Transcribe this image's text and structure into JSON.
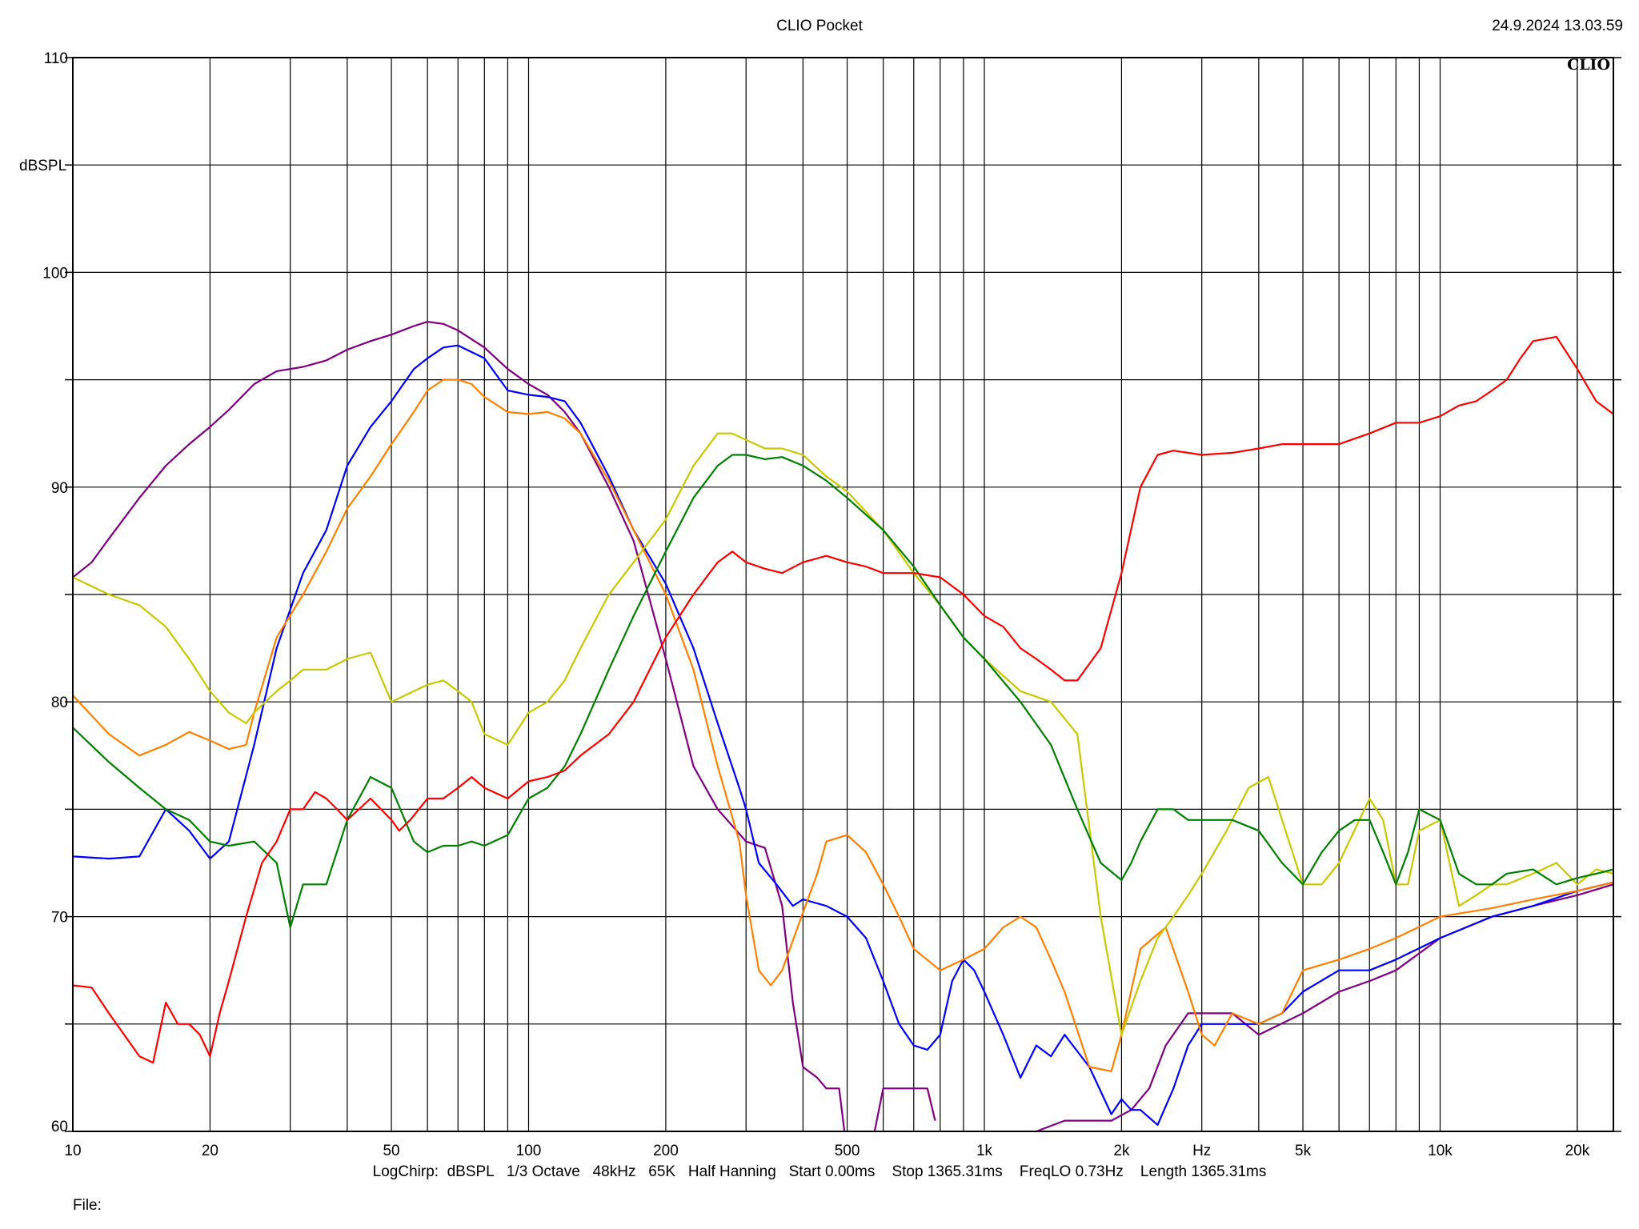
{
  "header": {
    "title": "CLIO Pocket",
    "timestamp": "24.9.2024 13.03.59"
  },
  "chart_data": {
    "type": "line",
    "title": "CLIO Pocket",
    "xlabel": "Hz",
    "ylabel": "dBSPL",
    "xscale": "log",
    "xlim": [
      10,
      24000
    ],
    "ylim": [
      60,
      110
    ],
    "grid": true,
    "yticks": [
      60,
      70,
      80,
      90,
      100,
      110
    ],
    "ytick_labels": [
      "60",
      "70",
      "80",
      "90",
      "100",
      "110"
    ],
    "xticks": [
      10,
      20,
      50,
      100,
      200,
      500,
      1000,
      2000,
      5000,
      10000,
      20000
    ],
    "xtick_labels": [
      "10",
      "20",
      "50",
      "100",
      "200",
      "500",
      "1k",
      "2k",
      "5k",
      "10k",
      "20k"
    ],
    "watermark": "CLIO",
    "series": [
      {
        "color": "#800080",
        "x": [
          10,
          11,
          12,
          14,
          16,
          18,
          20,
          22,
          25,
          28,
          32,
          36,
          40,
          45,
          50,
          56,
          60,
          65,
          70,
          80,
          90,
          100,
          110,
          120,
          130,
          150,
          170,
          200,
          230,
          260,
          300,
          330,
          360,
          380,
          400,
          430,
          450,
          480,
          500,
          550,
          600,
          650,
          700,
          750,
          780
        ],
        "y": [
          85.8,
          86.5,
          87.6,
          89.5,
          91,
          92,
          92.8,
          93.6,
          94.8,
          95.4,
          95.6,
          95.9,
          96.4,
          96.8,
          97.1,
          97.5,
          97.7,
          97.6,
          97.3,
          96.5,
          95.5,
          94.8,
          94.3,
          93.5,
          92.5,
          90,
          87.5,
          82,
          77,
          75,
          73.5,
          73.2,
          70.5,
          66,
          63,
          62.5,
          62,
          62,
          59,
          58,
          62,
          62,
          62,
          62,
          60.5
        ]
      },
      {
        "color": "#800080",
        "x": [
          1300,
          1500,
          1700,
          1900,
          2100,
          2300,
          2500,
          2800,
          3200,
          3500,
          4000,
          5000,
          6000,
          7000,
          8000,
          10000,
          13000,
          16000,
          20000,
          24000
        ],
        "y": [
          60,
          60.5,
          60.5,
          60.5,
          61,
          62,
          64,
          65.5,
          65.5,
          65.5,
          64.5,
          65.5,
          66.5,
          67,
          67.5,
          69,
          70,
          70.5,
          71,
          71.5
        ]
      },
      {
        "color": "#0000ff",
        "x": [
          10,
          12,
          14,
          16,
          18,
          20,
          22,
          25,
          28,
          32,
          36,
          40,
          45,
          50,
          56,
          60,
          65,
          70,
          80,
          90,
          100,
          110,
          120,
          130,
          150,
          170,
          200,
          230,
          260,
          290,
          300,
          320,
          350,
          380,
          400,
          450,
          500,
          550,
          600,
          650,
          700,
          750,
          800,
          850,
          900,
          950,
          1000,
          1100,
          1200,
          1300,
          1400,
          1500,
          1700,
          1900,
          2000,
          2100,
          2200,
          2400,
          2600,
          2800,
          3000,
          3500,
          4000,
          4500,
          5000,
          6000,
          7000,
          8000,
          10000,
          13000,
          16000,
          20000,
          24000
        ],
        "y": [
          72.8,
          72.7,
          72.8,
          75,
          74,
          72.7,
          73.5,
          78,
          82.5,
          86,
          88,
          91,
          92.8,
          94,
          95.5,
          96,
          96.5,
          96.6,
          96,
          94.5,
          94.3,
          94.2,
          94,
          93,
          90.5,
          88,
          85.5,
          82.5,
          79,
          76,
          75,
          72.5,
          71.5,
          70.5,
          70.8,
          70.5,
          70,
          69,
          67,
          65,
          64,
          63.8,
          64.5,
          67,
          68,
          67.5,
          66.5,
          64.5,
          62.5,
          64,
          63.5,
          64.5,
          63,
          60.8,
          61.5,
          61,
          61,
          60.3,
          62,
          64,
          65,
          65,
          65,
          65.5,
          66.5,
          67.5,
          67.5,
          68,
          69,
          70,
          70.5,
          71.2,
          71.6
        ]
      },
      {
        "color": "#ff8000",
        "x": [
          10,
          12,
          14,
          16,
          18,
          20,
          22,
          24,
          25,
          28,
          32,
          36,
          40,
          45,
          50,
          56,
          60,
          65,
          70,
          75,
          80,
          90,
          100,
          110,
          120,
          130,
          150,
          170,
          200,
          230,
          260,
          290,
          300,
          320,
          340,
          360,
          400,
          430,
          450,
          500,
          550,
          600,
          650,
          700,
          800,
          900,
          1000,
          1100,
          1200,
          1300,
          1400,
          1500,
          1700,
          1900,
          2000,
          2200,
          2500,
          2800,
          3000,
          3200,
          3500,
          4000,
          4500,
          5000,
          6000,
          7000,
          8000,
          10000,
          13000,
          16000,
          20000,
          24000
        ],
        "y": [
          80.3,
          78.5,
          77.5,
          78,
          78.6,
          78.2,
          77.8,
          78,
          79.5,
          83,
          85,
          87,
          89,
          90.5,
          92,
          93.5,
          94.5,
          95,
          95,
          94.8,
          94.2,
          93.5,
          93.4,
          93.5,
          93.2,
          92.5,
          90.3,
          88,
          85,
          81.5,
          77,
          73.5,
          71,
          67.5,
          66.8,
          67.5,
          70.2,
          72,
          73.5,
          73.8,
          73,
          71.5,
          70,
          68.5,
          67.5,
          68,
          68.5,
          69.5,
          70,
          69.5,
          68,
          66.5,
          63,
          62.8,
          64.5,
          68.5,
          69.5,
          66.5,
          64.5,
          64,
          65.5,
          65,
          65.5,
          67.5,
          68,
          68.5,
          69,
          70,
          70.4,
          70.8,
          71.2,
          71.6
        ]
      },
      {
        "color": "#c8c800",
        "x": [
          10,
          12,
          14,
          16,
          18,
          20,
          22,
          24,
          25,
          28,
          30,
          32,
          36,
          40,
          45,
          50,
          56,
          60,
          65,
          70,
          75,
          80,
          90,
          100,
          110,
          120,
          130,
          150,
          170,
          200,
          230,
          260,
          280,
          300,
          330,
          360,
          400,
          450,
          500,
          600,
          700,
          800,
          900,
          1000,
          1200,
          1400,
          1600,
          1800,
          2000,
          2200,
          2400,
          2600,
          2800,
          3000,
          3400,
          3800,
          4200,
          4500,
          5000,
          5500,
          6000,
          7000,
          7500,
          8000,
          8500,
          9000,
          10000,
          11000,
          12000,
          13000,
          14000,
          16000,
          18000,
          20000,
          22000,
          24000
        ],
        "y": [
          85.8,
          85,
          84.5,
          83.5,
          82,
          80.5,
          79.5,
          79,
          79.5,
          80.5,
          81,
          81.5,
          81.5,
          82,
          82.3,
          80,
          80.5,
          80.8,
          81,
          80.5,
          80,
          78.5,
          78,
          79.5,
          80,
          81,
          82.5,
          85,
          86.5,
          88.5,
          91,
          92.5,
          92.5,
          92.2,
          91.8,
          91.8,
          91.5,
          90.5,
          89.8,
          88,
          86,
          84.5,
          83,
          82,
          80.5,
          80,
          78.5,
          70,
          64.5,
          67,
          69,
          70,
          71,
          72,
          74,
          76,
          76.5,
          74.5,
          71.5,
          71.5,
          72.5,
          75.5,
          74.5,
          71.5,
          71.5,
          74,
          74.5,
          70.5,
          71,
          71.5,
          71.5,
          72,
          72.5,
          71.5,
          72.2,
          72
        ]
      },
      {
        "color": "#008000",
        "x": [
          10,
          12,
          14,
          16,
          18,
          20,
          22,
          25,
          28,
          30,
          32,
          36,
          40,
          45,
          50,
          56,
          60,
          65,
          70,
          75,
          80,
          90,
          100,
          110,
          120,
          130,
          150,
          170,
          200,
          230,
          260,
          280,
          300,
          330,
          360,
          400,
          450,
          500,
          600,
          700,
          800,
          900,
          1000,
          1200,
          1400,
          1600,
          1800,
          2000,
          2100,
          2200,
          2400,
          2600,
          2800,
          3200,
          3500,
          4000,
          4500,
          5000,
          5500,
          6000,
          6500,
          7000,
          7500,
          8000,
          8500,
          9000,
          10000,
          11000,
          12000,
          13000,
          14000,
          16000,
          18000,
          20000,
          22000,
          24000
        ],
        "y": [
          78.8,
          77.2,
          76,
          75,
          74.5,
          73.5,
          73.3,
          73.5,
          72.5,
          69.5,
          71.5,
          71.5,
          74.5,
          76.5,
          76,
          73.5,
          73,
          73.3,
          73.3,
          73.5,
          73.3,
          73.8,
          75.5,
          76,
          77,
          78.5,
          81.5,
          84,
          87,
          89.5,
          91,
          91.5,
          91.5,
          91.3,
          91.4,
          91,
          90.3,
          89.5,
          88,
          86.3,
          84.5,
          83,
          82,
          80,
          78,
          75,
          72.5,
          71.7,
          72.5,
          73.5,
          75,
          75,
          74.5,
          74.5,
          74.5,
          74,
          72.5,
          71.5,
          73,
          74,
          74.5,
          74.5,
          73,
          71.5,
          73,
          75,
          74.5,
          72,
          71.5,
          71.5,
          72,
          72.2,
          71.5,
          71.8,
          72,
          72.2
        ]
      },
      {
        "color": "#ff0000",
        "x": [
          10,
          11,
          12,
          14,
          15,
          16,
          17,
          18,
          19,
          20,
          21,
          22,
          24,
          26,
          28,
          30,
          32,
          34,
          36,
          38,
          40,
          45,
          50,
          52,
          55,
          60,
          65,
          70,
          75,
          80,
          90,
          100,
          110,
          120,
          130,
          150,
          170,
          200,
          230,
          260,
          280,
          300,
          330,
          360,
          400,
          450,
          500,
          550,
          600,
          700,
          800,
          900,
          1000,
          1100,
          1200,
          1300,
          1400,
          1500,
          1600,
          1800,
          2000,
          2200,
          2400,
          2600,
          3000,
          3500,
          4000,
          4500,
          5000,
          6000,
          7000,
          8000,
          9000,
          10000,
          11000,
          12000,
          13000,
          14000,
          15000,
          16000,
          18000,
          20000,
          22000,
          24000
        ],
        "y": [
          66.8,
          66.7,
          65.5,
          63.5,
          63.2,
          66,
          65,
          65,
          64.5,
          63.5,
          65.5,
          67,
          70,
          72.5,
          73.5,
          75,
          75,
          75.8,
          75.5,
          75,
          74.5,
          75.5,
          74.5,
          74,
          74.5,
          75.5,
          75.5,
          76,
          76.5,
          76,
          75.5,
          76.3,
          76.5,
          76.8,
          77.5,
          78.5,
          80,
          83,
          85,
          86.5,
          87,
          86.5,
          86.2,
          86,
          86.5,
          86.8,
          86.5,
          86.3,
          86,
          86,
          85.8,
          85,
          84,
          83.5,
          82.5,
          82,
          81.5,
          81,
          81,
          82.5,
          86,
          90,
          91.5,
          91.7,
          91.5,
          91.6,
          91.8,
          92,
          92,
          92,
          92.5,
          93,
          93,
          93.3,
          93.8,
          94,
          94.5,
          95,
          96,
          96.8,
          97,
          95.5,
          94,
          93.4
        ]
      }
    ]
  },
  "footer": {
    "params": "LogChirp:  dBSPL   1/3 Octave   48kHz   65K   Half Hanning   Start 0.00ms    Stop 1365.31ms    FreqLO 0.73Hz    Length 1365.31ms",
    "file_label": "File:"
  }
}
